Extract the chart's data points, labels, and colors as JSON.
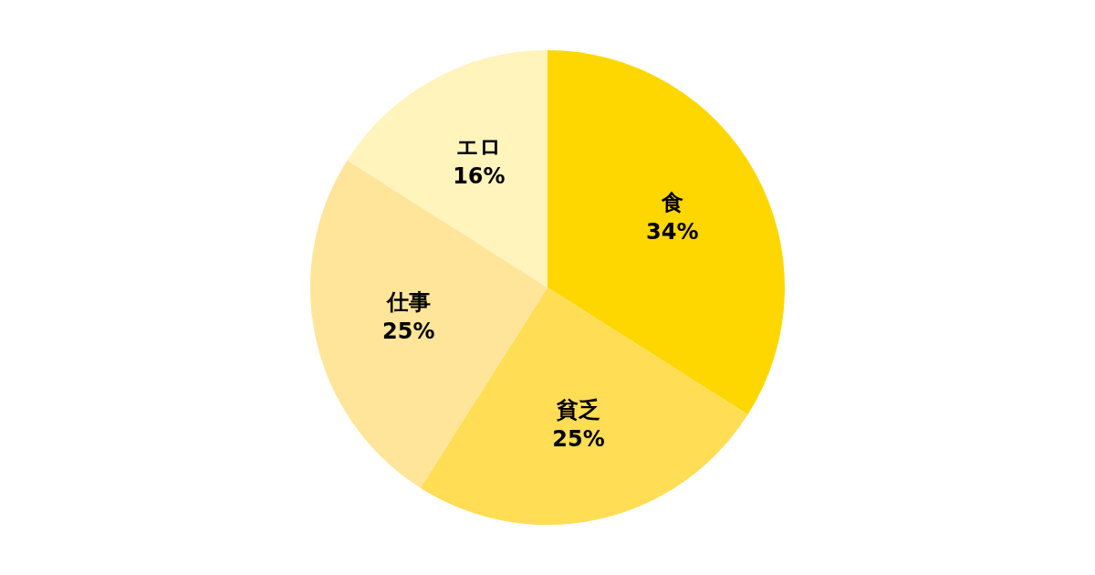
{
  "chart_data": {
    "type": "pie",
    "categories": [
      "食",
      "貧乏",
      "仕事",
      "エロ"
    ],
    "values": [
      34,
      25,
      25,
      16
    ],
    "colors": [
      "#ffd700",
      "#ffdd55",
      "#ffe599",
      "#fff4bb"
    ],
    "value_labels": [
      "34%",
      "25%",
      "25%",
      "16%"
    ],
    "legend": false
  }
}
